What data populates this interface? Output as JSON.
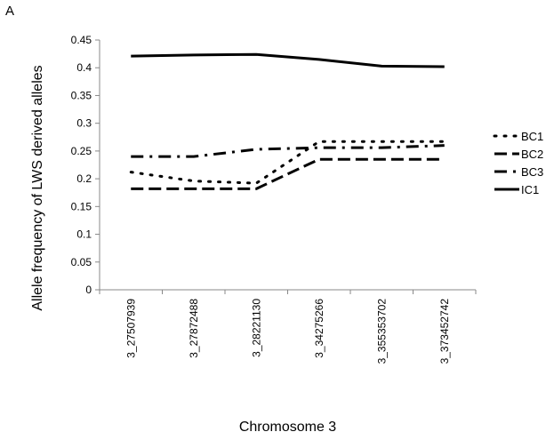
{
  "panel_label": "A",
  "chart_data": {
    "type": "line",
    "title": "",
    "xlabel": "Chromosome 3",
    "ylabel": "Allele frequency of LWS derived alleles",
    "categories": [
      "3_27507939",
      "3_27872488",
      "3_28221130",
      "3_34275266",
      "3_355353702",
      "3_373452742"
    ],
    "ylim": [
      0,
      0.45
    ],
    "yticks": [
      "0",
      "0.05",
      "0.1",
      "0.15",
      "0.2",
      "0.25",
      "0.3",
      "0.35",
      "0.4",
      "0.45"
    ],
    "grid": false,
    "legend_position": "right",
    "series": [
      {
        "name": "BC1",
        "style": "dotted",
        "values": [
          0.212,
          0.196,
          0.192,
          0.267,
          0.267,
          0.267
        ]
      },
      {
        "name": "BC2",
        "style": "dashed",
        "values": [
          0.182,
          0.182,
          0.182,
          0.235,
          0.235,
          0.235
        ]
      },
      {
        "name": "BC3",
        "style": "dash-dot",
        "values": [
          0.24,
          0.24,
          0.253,
          0.256,
          0.256,
          0.26
        ]
      },
      {
        "name": "IC1",
        "style": "solid",
        "values": [
          0.421,
          0.423,
          0.424,
          0.415,
          0.403,
          0.402
        ]
      }
    ],
    "colors": {
      "line": "#000000",
      "axis": "#888888"
    }
  }
}
